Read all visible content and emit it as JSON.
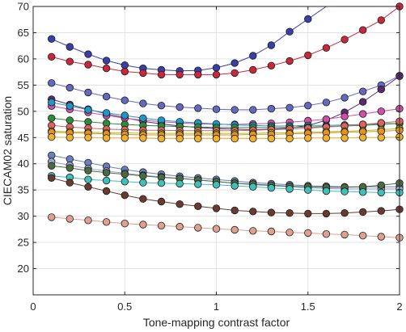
{
  "chart_data": {
    "type": "scatter",
    "xlabel": "Tone-mapping contrast factor",
    "ylabel": "CIECAM02 saturation",
    "xlim": [
      0,
      2
    ],
    "ylim": [
      15,
      70
    ],
    "xticks": [
      0,
      0.5,
      1,
      1.5,
      2
    ],
    "xtick_labels": [
      "0",
      "0.5",
      "1",
      "1.5",
      "2"
    ],
    "yticks": [
      20,
      25,
      30,
      35,
      40,
      45,
      50,
      55,
      60,
      65,
      70
    ],
    "ytick_labels": [
      "20",
      "25",
      "30",
      "35",
      "40",
      "45",
      "50",
      "55",
      "60",
      "65",
      "70"
    ],
    "grid": true,
    "x": [
      0.1,
      0.2,
      0.3,
      0.4,
      0.5,
      0.6,
      0.7,
      0.8,
      0.9,
      1.0,
      1.1,
      1.2,
      1.3,
      1.4,
      1.5,
      1.6,
      1.7,
      1.8,
      1.9,
      2.0
    ],
    "series": [
      {
        "color": "#3a3fa8",
        "values": [
          63.8,
          62.3,
          60.9,
          59.7,
          58.8,
          58.2,
          57.9,
          57.7,
          57.8,
          58.3,
          59.2,
          60.6,
          62.6,
          65.2,
          67.6,
          null,
          null,
          null,
          null,
          null
        ]
      },
      {
        "color": "#c8283c",
        "values": [
          60.4,
          59.5,
          58.9,
          58.2,
          57.6,
          57.3,
          57.0,
          57.0,
          57.0,
          57.0,
          57.3,
          57.9,
          58.7,
          59.6,
          60.7,
          62.1,
          63.7,
          65.5,
          67.4,
          70.0
        ]
      },
      {
        "color": "#6468c0",
        "values": [
          55.4,
          54.5,
          53.6,
          52.8,
          52.1,
          51.5,
          51.1,
          50.8,
          50.6,
          50.4,
          50.3,
          50.3,
          50.5,
          50.7,
          51.1,
          51.7,
          52.6,
          53.8,
          55.0,
          56.8
        ]
      },
      {
        "color": "#5b2a6e",
        "values": [
          52.3,
          51.3,
          50.4,
          49.5,
          48.8,
          48.1,
          47.6,
          47.2,
          46.9,
          46.7,
          46.6,
          46.5,
          46.6,
          46.8,
          47.3,
          48.3,
          49.8,
          51.8,
          54.2,
          56.7
        ]
      },
      {
        "color": "#d050a8",
        "values": [
          51.0,
          50.4,
          49.8,
          49.2,
          48.7,
          48.3,
          48.0,
          47.8,
          47.6,
          47.5,
          47.5,
          47.6,
          47.7,
          47.9,
          48.2,
          48.5,
          49.0,
          49.5,
          50.0,
          50.5
        ]
      },
      {
        "color": "#2096c8",
        "values": [
          51.7,
          51.0,
          50.3,
          49.7,
          49.2,
          48.7,
          48.3,
          48.0,
          47.8,
          47.6,
          47.4,
          47.3,
          47.2,
          47.2,
          47.3,
          47.3,
          47.4,
          47.5,
          47.6,
          47.7
        ]
      },
      {
        "color": "#2e8b3c",
        "values": [
          48.7,
          48.3,
          48.0,
          47.7,
          47.5,
          47.3,
          47.2,
          47.1,
          47.0,
          46.9,
          46.9,
          46.9,
          46.9,
          46.9,
          47.0,
          47.1,
          47.2,
          47.3,
          47.5,
          47.7
        ]
      },
      {
        "color": "#e06060",
        "values": [
          47.3,
          47.0,
          46.8,
          46.6,
          46.5,
          46.4,
          46.4,
          46.3,
          46.3,
          46.3,
          46.3,
          46.4,
          46.5,
          46.6,
          46.8,
          47.0,
          47.2,
          47.5,
          47.8,
          48.1
        ]
      },
      {
        "color": "#a0c828",
        "values": [
          46.2,
          46.1,
          46.0,
          45.9,
          45.9,
          45.8,
          45.8,
          45.8,
          45.8,
          45.8,
          45.8,
          45.8,
          45.9,
          45.9,
          46.0,
          46.1,
          46.2,
          46.3,
          46.5,
          46.7
        ]
      },
      {
        "color": "#e89020",
        "values": [
          46.0,
          45.9,
          45.8,
          45.7,
          45.6,
          45.5,
          45.5,
          45.5,
          45.5,
          45.5,
          45.5,
          45.6,
          45.6,
          45.7,
          45.8,
          45.9,
          46.0,
          46.1,
          46.2,
          46.4
        ]
      },
      {
        "color": "#f0b030",
        "values": [
          45.1,
          45.0,
          45.0,
          44.9,
          44.9,
          44.9,
          44.8,
          44.8,
          44.8,
          44.8,
          44.8,
          44.8,
          44.8,
          44.8,
          44.9,
          44.9,
          44.9,
          45.0,
          45.0,
          45.1
        ]
      },
      {
        "color": "#6b7ec0",
        "values": [
          41.6,
          40.9,
          40.2,
          39.5,
          38.9,
          38.4,
          38.0,
          37.6,
          37.3,
          37.0,
          36.7,
          36.4,
          36.2,
          36.0,
          35.8,
          35.7,
          35.6,
          35.6,
          35.6,
          35.6
        ]
      },
      {
        "color": "#9ca0d0",
        "values": [
          40.4,
          39.7,
          39.1,
          38.6,
          38.2,
          37.8,
          37.5,
          37.2,
          36.9,
          36.6,
          36.3,
          36.0,
          35.8,
          35.6,
          35.4,
          35.3,
          35.2,
          35.2,
          35.2,
          35.2
        ]
      },
      {
        "color": "#4a6a40",
        "values": [
          39.6,
          39.2,
          38.7,
          38.3,
          38.0,
          37.7,
          37.4,
          37.2,
          36.9,
          36.6,
          36.3,
          36.1,
          35.9,
          35.7,
          35.6,
          35.5,
          35.5,
          35.6,
          35.9,
          36.3
        ]
      },
      {
        "color": "#40c0b8",
        "values": [
          37.7,
          37.4,
          37.0,
          36.8,
          36.6,
          36.4,
          36.3,
          36.2,
          36.1,
          36.0,
          35.8,
          35.6,
          35.4,
          35.2,
          35.0,
          34.8,
          34.7,
          34.6,
          34.5,
          34.5
        ]
      },
      {
        "color": "#6a3a30",
        "values": [
          37.3,
          36.4,
          35.6,
          34.8,
          34.0,
          33.3,
          32.8,
          32.3,
          31.9,
          31.5,
          31.1,
          30.9,
          30.7,
          30.6,
          30.5,
          30.5,
          30.6,
          30.8,
          31.0,
          31.3
        ]
      },
      {
        "color": "#e0a090",
        "values": [
          29.8,
          29.5,
          29.2,
          28.9,
          28.6,
          28.4,
          28.2,
          28.0,
          27.8,
          27.6,
          27.4,
          27.2,
          27.1,
          26.9,
          26.8,
          26.6,
          26.5,
          26.3,
          26.1,
          25.9
        ]
      }
    ]
  }
}
